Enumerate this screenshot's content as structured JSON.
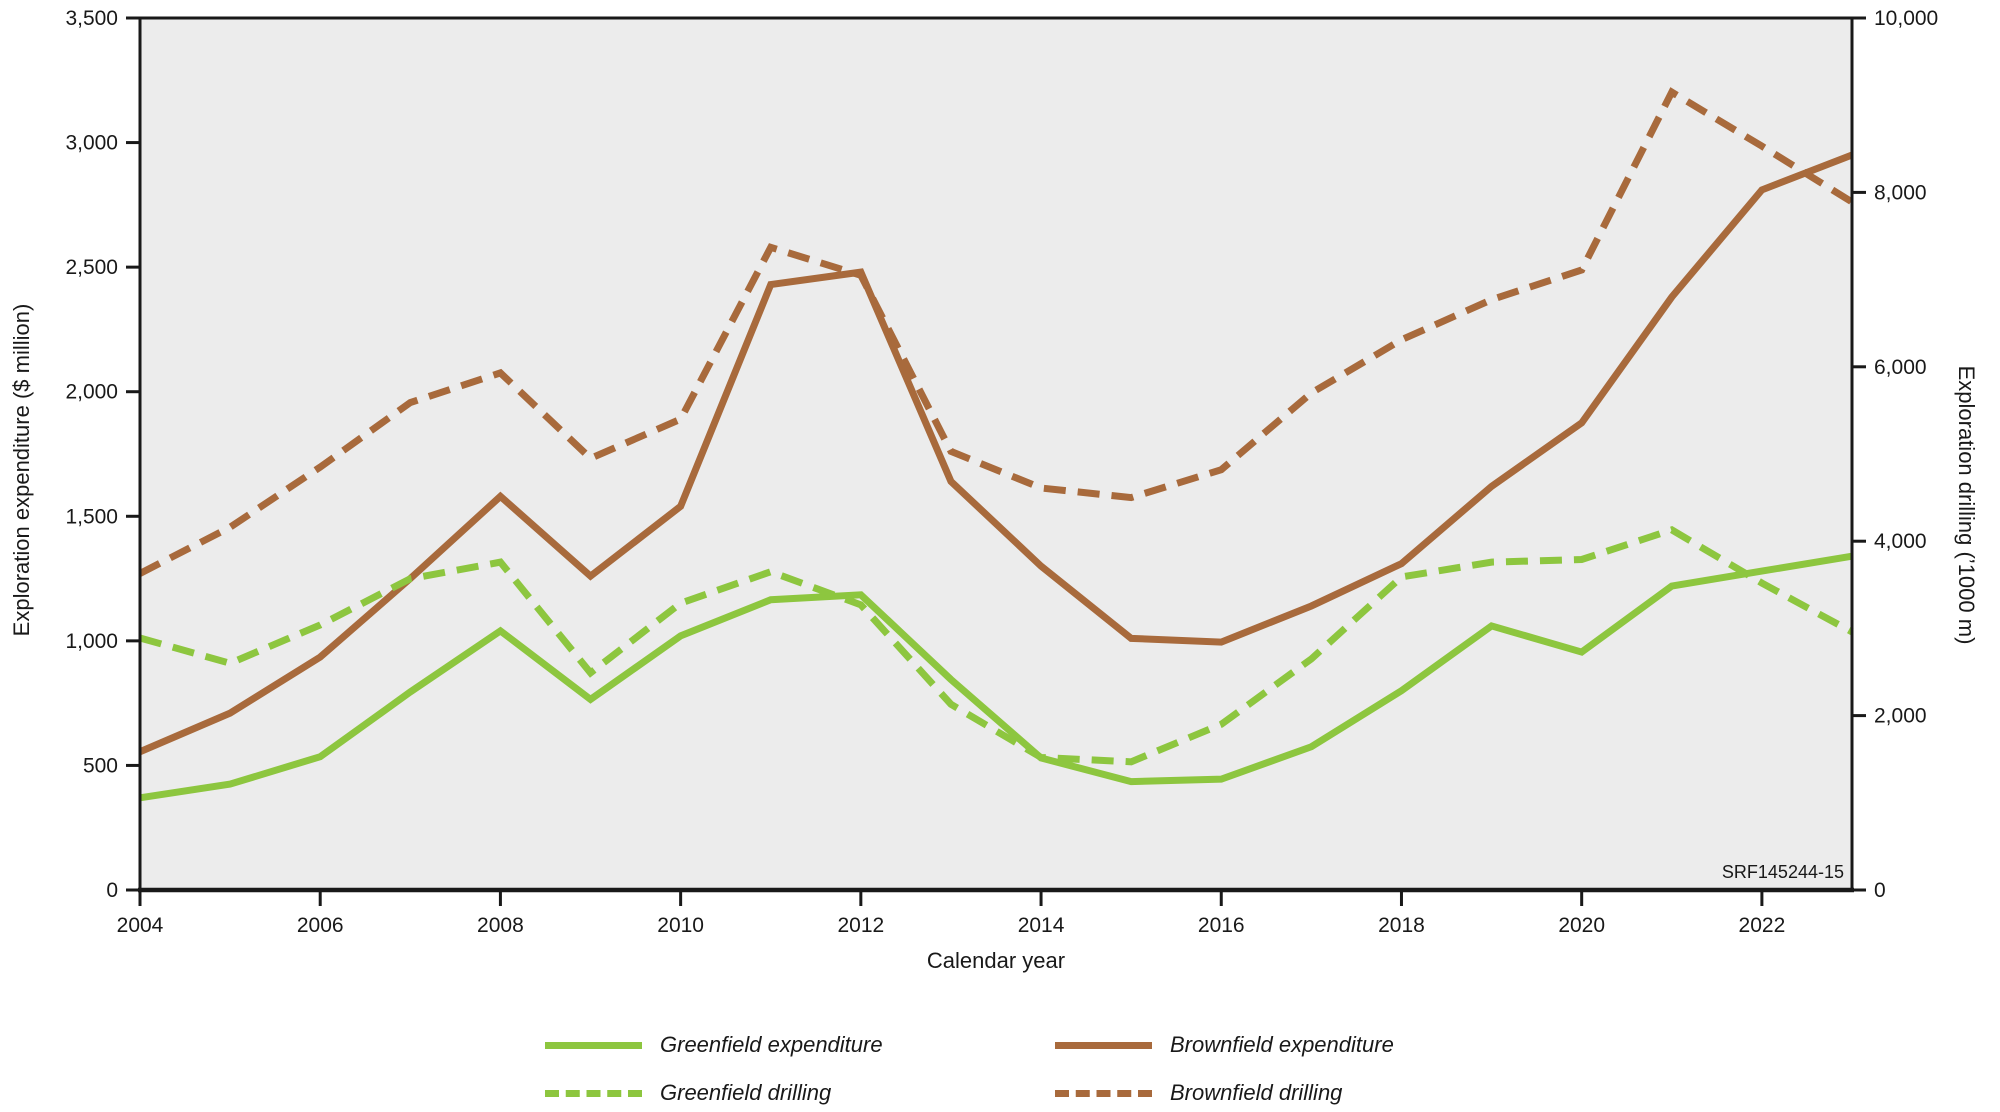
{
  "figure_label": "SRF145244-15",
  "colors": {
    "greenfield": "#8dc63f",
    "brownfield": "#a86a3c",
    "plot_background": "#ececec",
    "axis": "#191919"
  },
  "axes": {
    "x_title": "Calendar year",
    "y_left_title": "Exploration expenditure ($ million)",
    "y_right_title": "Exploration drilling (’1000 m)",
    "x_tick_years": [
      2004,
      2006,
      2008,
      2010,
      2012,
      2014,
      2016,
      2018,
      2020,
      2022
    ],
    "y_left": {
      "min": 0,
      "max": 3500,
      "step": 500
    },
    "y_right": {
      "min": 0,
      "max": 10000,
      "step": 2000
    }
  },
  "legend": {
    "items": [
      {
        "label": "Greenfield expenditure",
        "series": 0
      },
      {
        "label": "Brownfield expenditure",
        "series": 1
      },
      {
        "label": "Greenfield drilling",
        "series": 2
      },
      {
        "label": "Brownfield drilling",
        "series": 3
      }
    ]
  },
  "chart_data": {
    "type": "line",
    "x": [
      2004,
      2005,
      2006,
      2007,
      2008,
      2009,
      2010,
      2011,
      2012,
      2013,
      2014,
      2015,
      2016,
      2017,
      2018,
      2019,
      2020,
      2021,
      2022,
      2023
    ],
    "x_range": [
      2004,
      2023
    ],
    "y_left_range": [
      0,
      3500
    ],
    "y_right_range": [
      0,
      10000
    ],
    "grid": false,
    "legend_position": "bottom",
    "series": [
      {
        "name": "Greenfield expenditure",
        "axis": "left",
        "style": "solid",
        "color": "#8dc63f",
        "values": [
          370,
          425,
          535,
          795,
          1040,
          765,
          1020,
          1165,
          1185,
          845,
          530,
          435,
          445,
          575,
          800,
          1060,
          955,
          1220,
          1280,
          1340
        ]
      },
      {
        "name": "Brownfield expenditure",
        "axis": "left",
        "style": "solid",
        "color": "#a86a3c",
        "values": [
          555,
          710,
          935,
          1250,
          1580,
          1260,
          1540,
          2430,
          2480,
          1640,
          1300,
          1010,
          995,
          1140,
          1310,
          1620,
          1875,
          2380,
          2810,
          2950
        ]
      },
      {
        "name": "Greenfield drilling",
        "axis": "right",
        "style": "dashed",
        "color": "#8dc63f",
        "values": [
          2890,
          2600,
          3040,
          3570,
          3760,
          2490,
          3290,
          3650,
          3270,
          2130,
          1520,
          1470,
          1900,
          2650,
          3590,
          3760,
          3790,
          4130,
          3520,
          2960
        ]
      },
      {
        "name": "Brownfield drilling",
        "axis": "right",
        "style": "dashed",
        "color": "#a86a3c",
        "values": [
          3630,
          4160,
          4850,
          5590,
          5930,
          4950,
          5400,
          7370,
          7050,
          5030,
          4610,
          4500,
          4820,
          5700,
          6310,
          6770,
          7110,
          9150,
          8530,
          7890
        ]
      }
    ],
    "title": "",
    "xlabel": "Calendar year",
    "ylabel_left": "Exploration expenditure ($ million)",
    "ylabel_right": "Exploration drilling (’1000 m)"
  }
}
